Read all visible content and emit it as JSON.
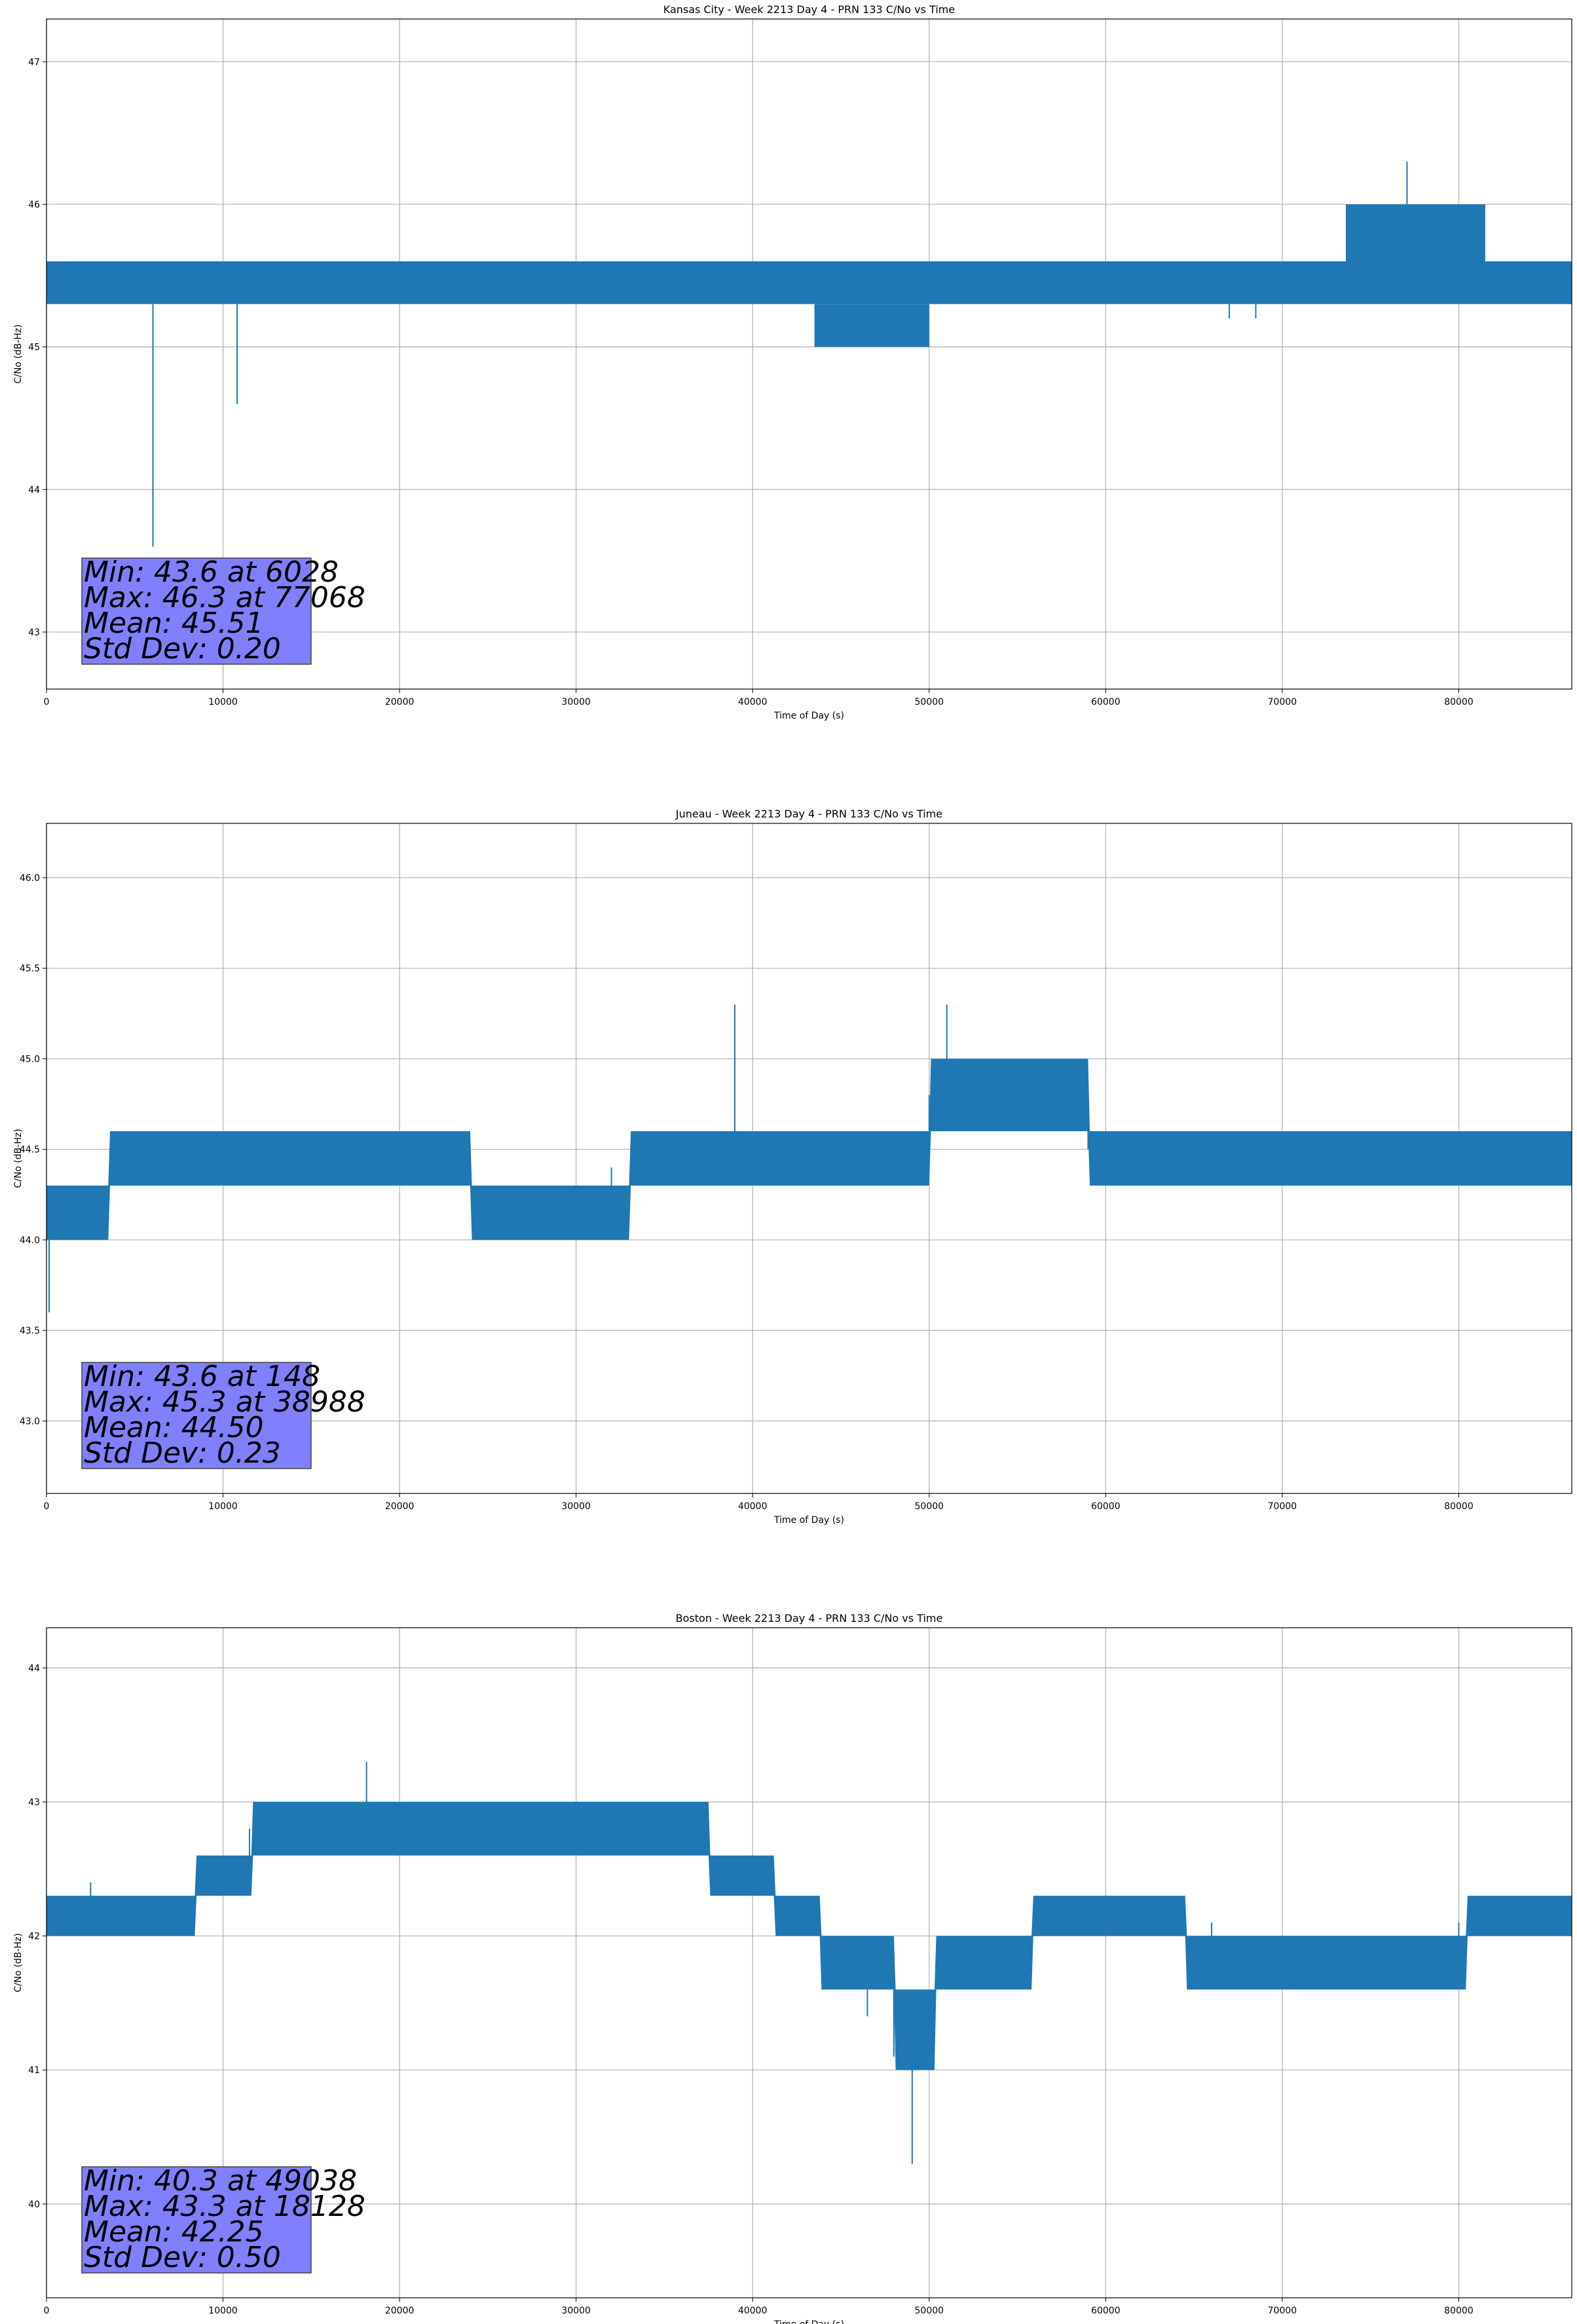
{
  "colors": {
    "series": "#1f77b4",
    "grid": "#b0b0b0",
    "stats_box": "#8080ff"
  },
  "chart_data": [
    {
      "type": "line",
      "title": "Kansas City - Week 2213 Day 4 - PRN 133 C/No vs Time",
      "xlabel": "Time of Day (s)",
      "ylabel": "C/No (dB-Hz)",
      "xlim": [
        0,
        86400
      ],
      "ylim": [
        42.6,
        47.3
      ],
      "xticks": [
        0,
        10000,
        20000,
        30000,
        40000,
        50000,
        60000,
        70000,
        80000
      ],
      "yticks": [
        43,
        44,
        45,
        46,
        47
      ],
      "ytick_decimals": 0,
      "grid": true,
      "series": [
        {
          "x": [
            0,
            5900,
            6028,
            6200,
            10800,
            10900,
            15000,
            20000,
            25000,
            29000,
            30500,
            35000,
            40000,
            43000,
            45000,
            46500,
            48000,
            49500,
            50500,
            55000,
            60000,
            65000,
            67000,
            68500,
            70000,
            73600,
            74000,
            76500,
            77068,
            78000,
            80000,
            83000,
            86400
          ],
          "y": [
            45.5,
            45.5,
            43.6,
            45.5,
            44.6,
            45.5,
            45.5,
            45.4,
            45.5,
            45.5,
            45.4,
            45.4,
            45.5,
            45.5,
            45.3,
            45.2,
            45.1,
            45.2,
            45.5,
            45.4,
            45.5,
            45.5,
            45.2,
            45.2,
            45.5,
            45.5,
            45.8,
            45.8,
            46.3,
            45.8,
            45.8,
            45.5,
            45.5
          ],
          "band_x": [
            0,
            13000,
            40000,
            45500,
            50000,
            56000,
            67000,
            70000,
            73600,
            81500,
            86400
          ],
          "band_lo": [
            45.3,
            45.3,
            45.3,
            45.3,
            45.3,
            45.3,
            45.3,
            45.3,
            45.3,
            45.3,
            45.3
          ],
          "band_hi": [
            45.6,
            45.6,
            45.6,
            45.6,
            45.6,
            45.6,
            45.6,
            45.6,
            45.6,
            45.6,
            45.6
          ],
          "band2_x": [
            73600,
            81500
          ],
          "band2_lo": [
            45.6,
            45.6
          ],
          "band2_hi": [
            46.0,
            46.0
          ],
          "band3_x": [
            43500,
            50000
          ],
          "band3_lo": [
            45.0,
            45.0
          ],
          "band3_hi": [
            45.3,
            45.3
          ]
        }
      ],
      "stats": [
        "Min: 43.6 at 6028",
        "Max: 46.3 at 77068",
        "Mean: 45.51",
        "Std Dev: 0.20"
      ]
    },
    {
      "type": "line",
      "title": "Juneau - Week 2213 Day 4 - PRN 133 C/No vs Time",
      "xlabel": "Time of Day (s)",
      "ylabel": "C/No (dB-Hz)",
      "xlim": [
        0,
        86400
      ],
      "ylim": [
        42.6,
        46.3
      ],
      "xticks": [
        0,
        10000,
        20000,
        30000,
        40000,
        50000,
        60000,
        70000,
        80000
      ],
      "yticks": [
        43.0,
        43.5,
        44.0,
        44.5,
        45.0,
        45.5,
        46.0
      ],
      "ytick_decimals": 1,
      "grid": true,
      "series": [
        {
          "x": [
            0,
            148,
            1000,
            3500,
            5000,
            10000,
            20000,
            25000,
            27000,
            29500,
            32000,
            38988,
            40000,
            45000,
            50000,
            51000,
            55000,
            59000,
            60000,
            70000,
            80000,
            86400
          ],
          "y": [
            44.2,
            43.6,
            44.1,
            44.2,
            44.5,
            44.5,
            44.4,
            44.2,
            44.1,
            44.2,
            44.4,
            45.3,
            44.5,
            44.5,
            44.8,
            45.3,
            44.8,
            44.5,
            44.4,
            44.5,
            44.4,
            44.4
          ],
          "band_x": [
            0,
            3500,
            3600,
            24000,
            24100,
            33000,
            33100,
            50000,
            50100,
            59000,
            59100,
            86400
          ],
          "band_lo": [
            44.0,
            44.0,
            44.3,
            44.3,
            44.0,
            44.0,
            44.3,
            44.3,
            44.6,
            44.6,
            44.3,
            44.3
          ],
          "band_hi": [
            44.3,
            44.3,
            44.6,
            44.6,
            44.3,
            44.3,
            44.6,
            44.6,
            45.0,
            45.0,
            44.6,
            44.6
          ]
        }
      ],
      "stats": [
        "Min: 43.6 at 148",
        "Max: 45.3 at 38988",
        "Mean: 44.50",
        "Std Dev: 0.23"
      ]
    },
    {
      "type": "line",
      "title": "Boston - Week 2213 Day 4 - PRN 133 C/No vs Time",
      "xlabel": "Time of Day (s)",
      "ylabel": "C/No (dB-Hz)",
      "xlim": [
        0,
        86400
      ],
      "ylim": [
        39.3,
        44.3
      ],
      "xticks": [
        0,
        10000,
        20000,
        30000,
        40000,
        50000,
        60000,
        70000,
        80000
      ],
      "yticks": [
        40,
        41,
        42,
        43,
        44
      ],
      "ytick_decimals": 0,
      "grid": true,
      "series": [
        {
          "x": [
            0,
            2500,
            8500,
            11500,
            18128,
            25000,
            37500,
            40000,
            41500,
            44000,
            46500,
            48000,
            49038,
            50000,
            52000,
            55000,
            57000,
            63000,
            66000,
            69000,
            73000,
            76000,
            80000,
            86400
          ],
          "y": [
            42.1,
            42.4,
            42.4,
            42.8,
            43.3,
            42.8,
            42.8,
            42.4,
            42.1,
            41.8,
            41.4,
            41.1,
            40.3,
            41.4,
            41.7,
            41.8,
            42.1,
            42.3,
            42.1,
            41.8,
            41.6,
            41.8,
            42.1,
            42.1
          ],
          "band_x": [
            0,
            8400,
            8500,
            11600,
            11700,
            37500,
            37600,
            41200,
            41300,
            43800,
            43900,
            48000,
            48100,
            50300,
            50400,
            55800,
            55900,
            64500,
            64600,
            71000,
            71100,
            80400,
            80500,
            86400
          ],
          "band_lo": [
            42.0,
            42.0,
            42.3,
            42.3,
            42.6,
            42.6,
            42.3,
            42.3,
            42.0,
            42.0,
            41.6,
            41.6,
            41.0,
            41.0,
            41.6,
            41.6,
            42.0,
            42.0,
            41.6,
            41.6,
            41.6,
            41.6,
            42.0,
            42.0
          ],
          "band_hi": [
            42.3,
            42.3,
            42.6,
            42.6,
            43.0,
            43.0,
            42.6,
            42.6,
            42.3,
            42.3,
            42.0,
            42.0,
            41.6,
            41.6,
            42.0,
            42.0,
            42.3,
            42.3,
            42.0,
            42.0,
            42.0,
            42.0,
            42.3,
            42.3
          ]
        }
      ],
      "stats": [
        "Min: 40.3 at 49038",
        "Max: 43.3 at 18128",
        "Mean: 42.25",
        "Std Dev: 0.50"
      ]
    }
  ]
}
